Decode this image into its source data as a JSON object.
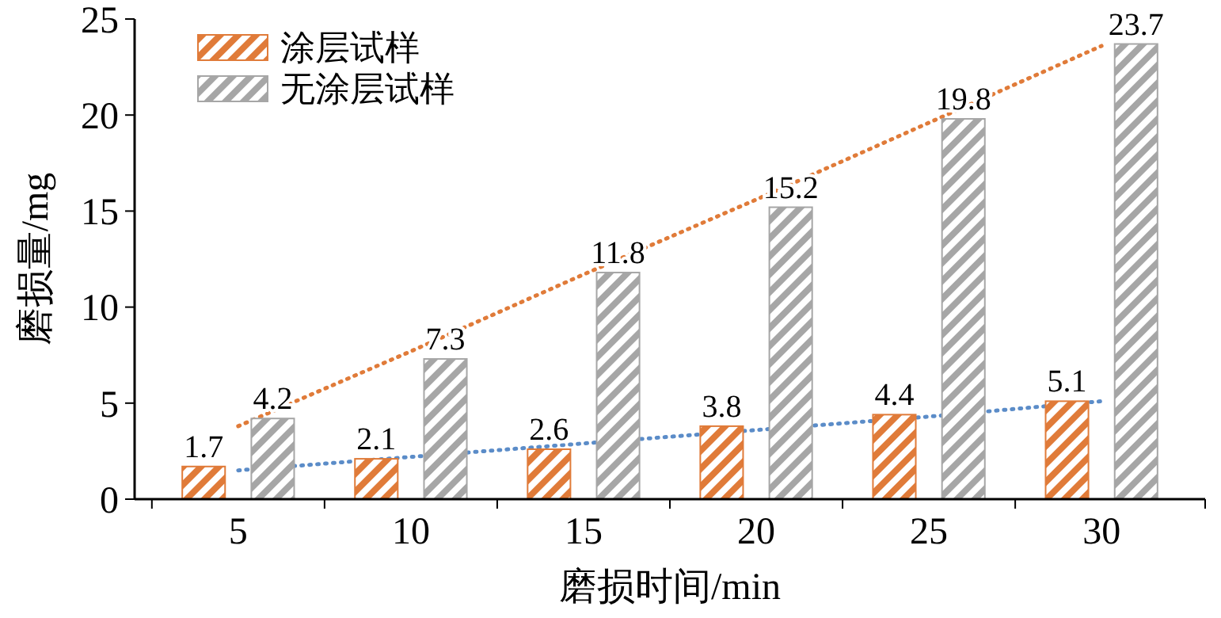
{
  "chart_data": {
    "type": "bar",
    "xlabel": "磨损时间/min",
    "ylabel": "磨损量/mg",
    "categories": [
      "5",
      "10",
      "15",
      "20",
      "25",
      "30"
    ],
    "series": [
      {
        "name": "涂层试样",
        "color": "#e07b39",
        "values": [
          1.7,
          2.1,
          2.6,
          3.8,
          4.4,
          5.1
        ],
        "value_labels": [
          "1.7",
          "2.1",
          "2.6",
          "3.8",
          "4.4",
          "5.1"
        ]
      },
      {
        "name": "无涂层试样",
        "color": "#a6a6a6",
        "values": [
          4.2,
          7.3,
          11.8,
          15.2,
          19.8,
          23.7
        ],
        "value_labels": [
          "4.2",
          "7.3",
          "11.8",
          "15.2",
          "19.8",
          "23.7"
        ]
      },
      {
        "type": "line",
        "color": "#e07b39",
        "line_style": "dotted",
        "values": [
          3.8,
          7.7,
          11.7,
          15.6,
          19.6,
          23.6
        ]
      },
      {
        "type": "line",
        "color": "#5b8cc8",
        "line_style": "dotted",
        "values": [
          1.5,
          2.2,
          2.9,
          3.6,
          4.3,
          5.1
        ]
      }
    ],
    "ylim": [
      0,
      25
    ],
    "yticks": [
      0,
      5,
      10,
      15,
      20,
      25
    ],
    "legend": "top left",
    "grid": false
  }
}
